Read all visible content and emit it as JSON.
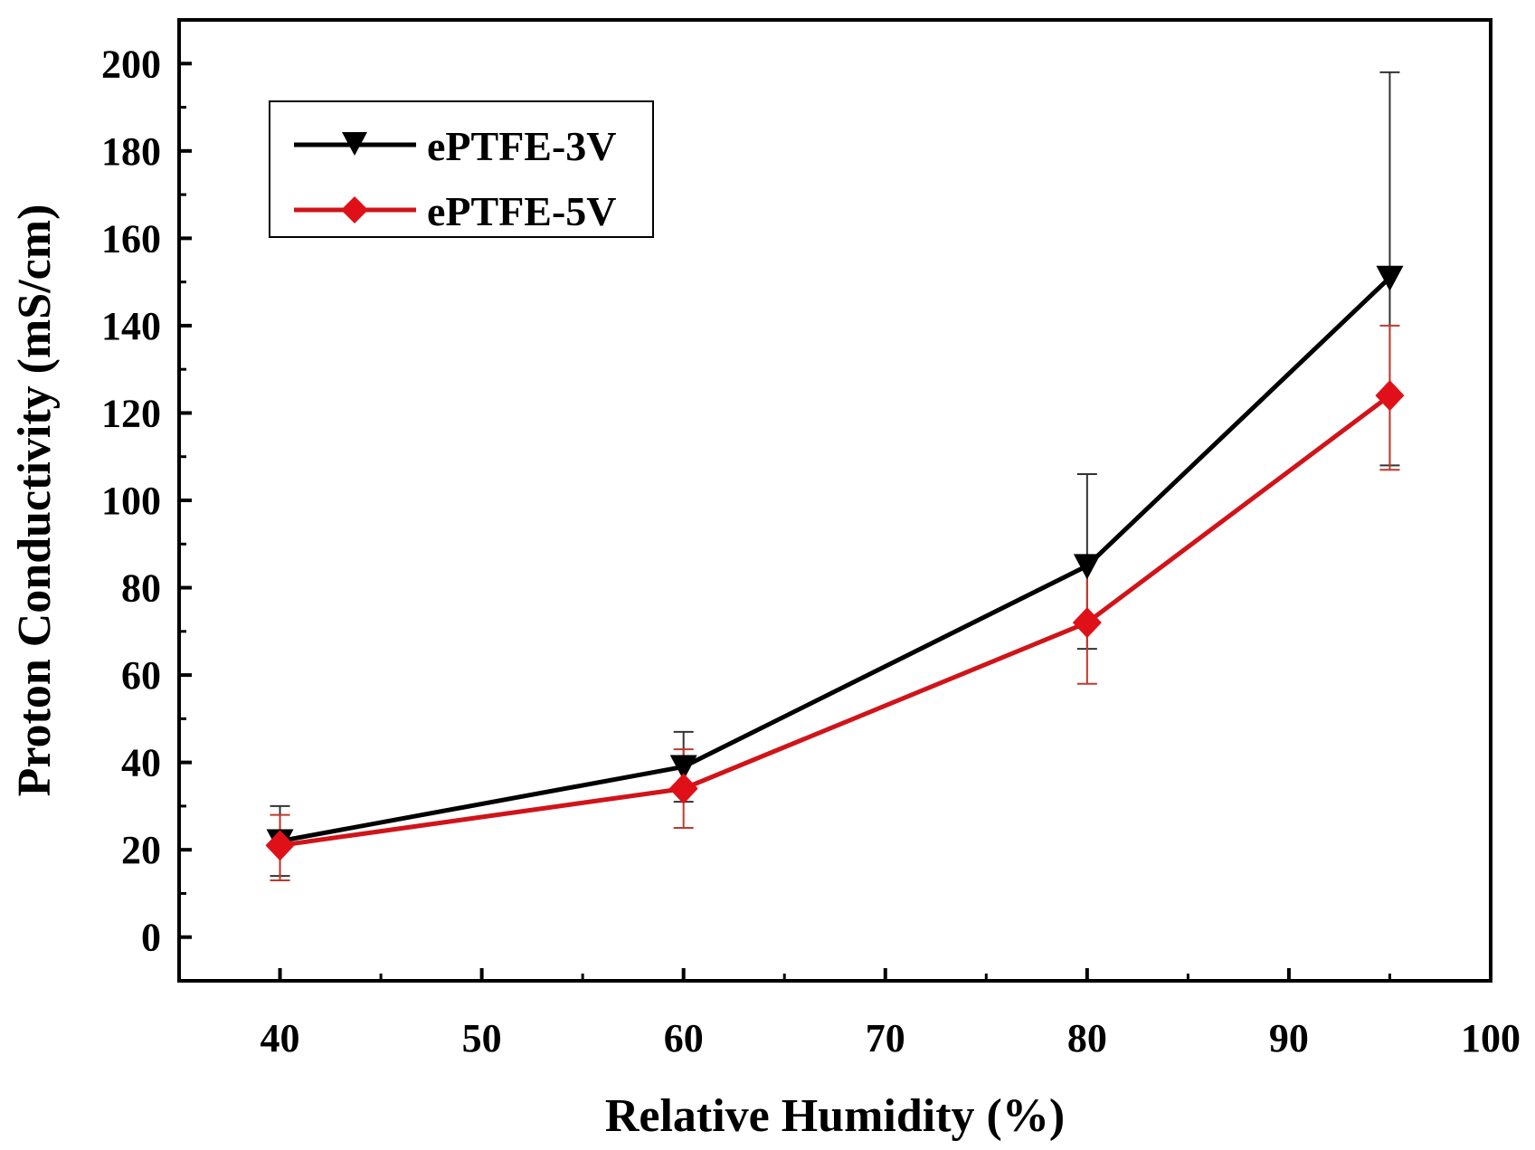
{
  "chart_data": {
    "type": "line",
    "title": "",
    "xlabel": "Relative Humidity (%)",
    "ylabel": "Proton Conductivity (mS/cm)",
    "xlim": [
      35,
      100
    ],
    "ylim": [
      -10,
      210
    ],
    "xticks": [
      40,
      50,
      60,
      70,
      80,
      90,
      100
    ],
    "yticks": [
      0,
      20,
      40,
      60,
      80,
      100,
      120,
      140,
      160,
      180,
      200
    ],
    "x": [
      40,
      60,
      80,
      95
    ],
    "legend_position": "top-left",
    "series": [
      {
        "name": "ePTFE-3V",
        "color": "#000000",
        "marker": "down-triangle",
        "values": [
          22,
          39,
          85,
          151
        ],
        "err_upper": [
          30,
          47,
          106,
          198
        ],
        "err_lower": [
          14,
          31,
          66,
          108
        ]
      },
      {
        "name": "ePTFE-5V",
        "color": "#d0141a",
        "marker": "diamond",
        "values": [
          21,
          34,
          72,
          124
        ],
        "err_upper": [
          28,
          43,
          87,
          140
        ],
        "err_lower": [
          13,
          25,
          58,
          107
        ]
      }
    ]
  }
}
